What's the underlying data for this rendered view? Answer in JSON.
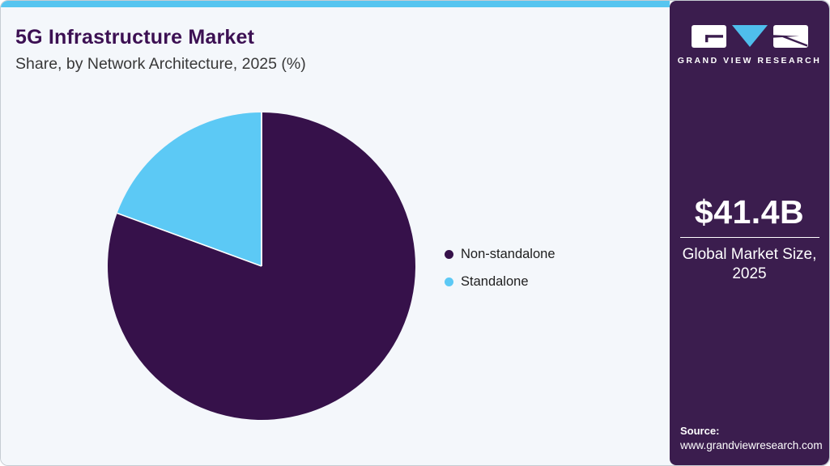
{
  "header": {
    "title": "5G Infrastructure Market",
    "subtitle": "Share, by Network Architecture, 2025 (%)"
  },
  "chart_data": {
    "type": "pie",
    "title": "5G Infrastructure Market Share, by Network Architecture, 2025 (%)",
    "labels": [
      "Non-standalone",
      "Standalone"
    ],
    "values": [
      80.6,
      19.4
    ],
    "unit": "%",
    "colors": [
      "#36114A",
      "#5CC9F5"
    ],
    "start_angle_deg": 0,
    "direction": "clockwise",
    "legend_position": "right",
    "separator_color": "#ffffff"
  },
  "legend": {
    "items": [
      {
        "label": "Non-standalone",
        "color": "#36114A"
      },
      {
        "label": "Standalone",
        "color": "#5CC9F5"
      }
    ]
  },
  "sidebar": {
    "logo_text": "GRAND VIEW RESEARCH",
    "market_size": "$41.4B",
    "market_label": "Global Market Size, 2025",
    "source_label": "Source:",
    "source_url": "www.grandviewresearch.com"
  },
  "colors": {
    "accent_bar": "#56C5F0",
    "sidebar_bg": "#3B1D4E",
    "title_color": "#3C1053",
    "logo_triangle": "#4FBEEC",
    "background": "#F4F7FB"
  }
}
